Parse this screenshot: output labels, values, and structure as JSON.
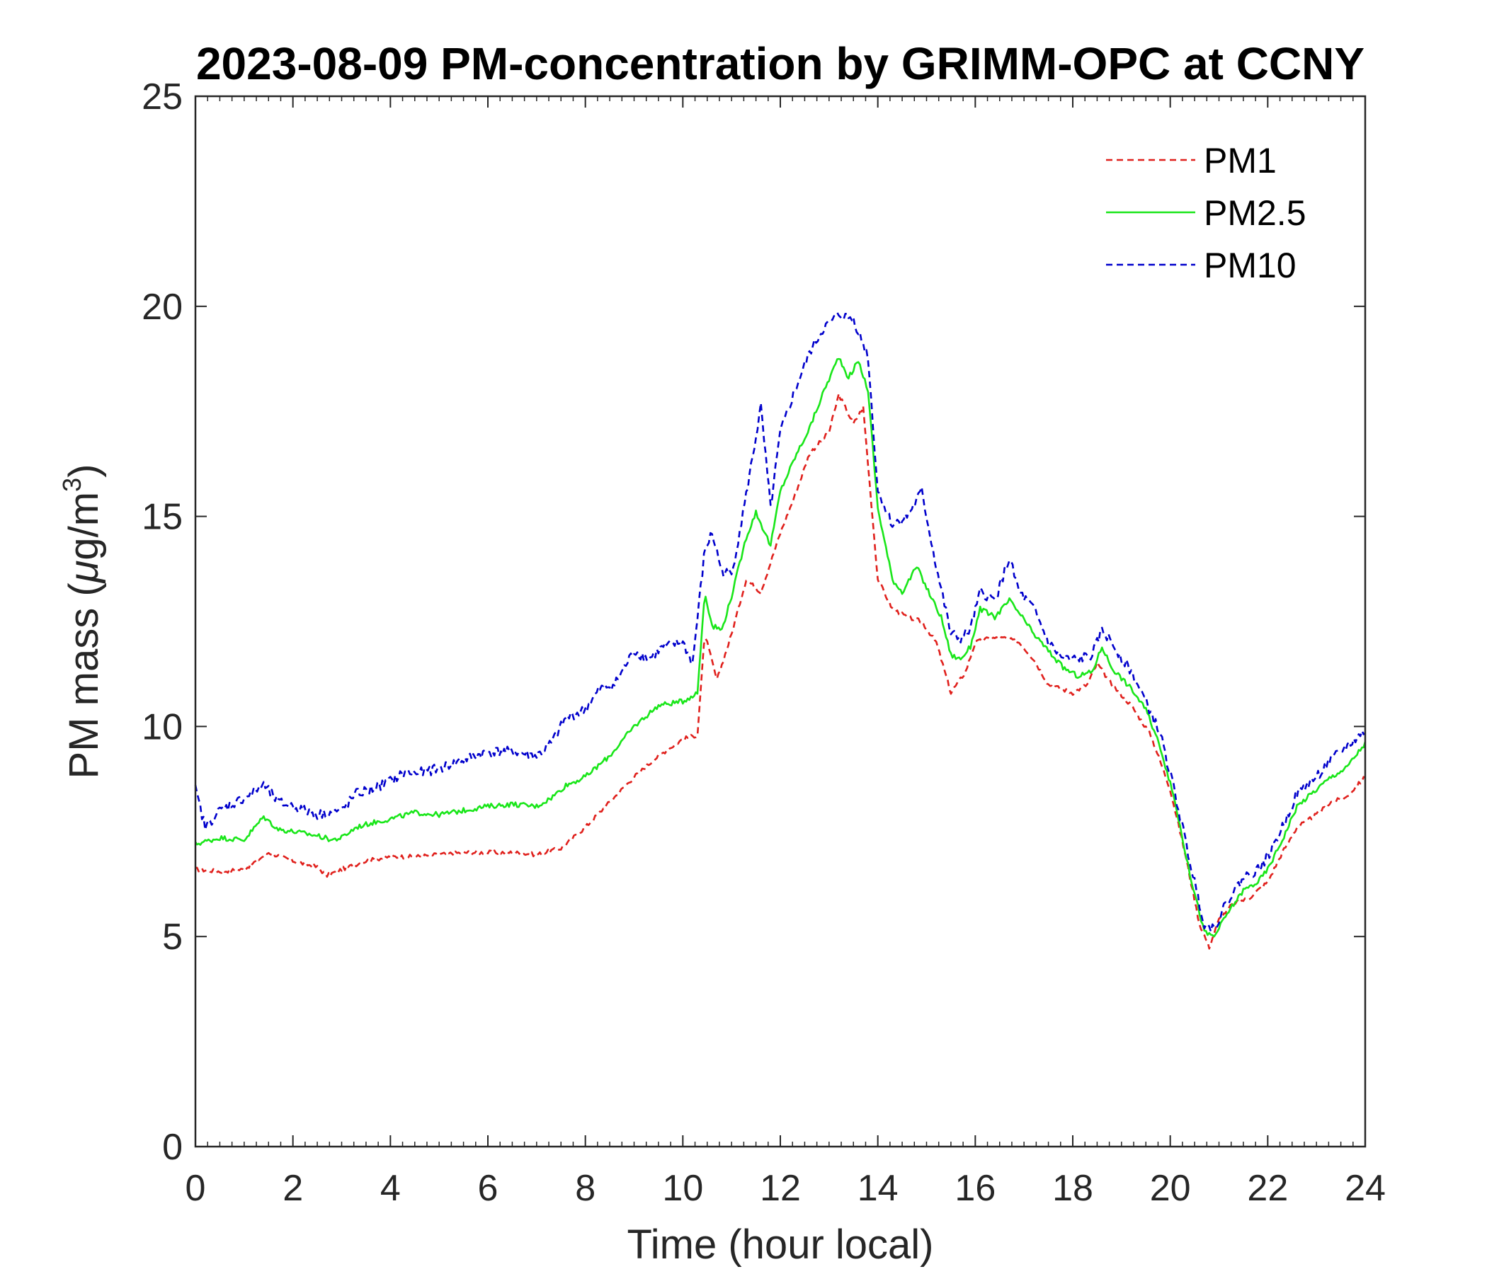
{
  "chart_data": {
    "type": "line",
    "title": "2023-08-09 PM-concentration by GRIMM-OPC at CCNY",
    "xlabel": "Time (hour local)",
    "ylabel": "PM mass (μg/m3)",
    "ylabel_parts": {
      "main": "PM mass (",
      "mu": "μ",
      "unit": "g/m",
      "sup": "3",
      "close": ")"
    },
    "xlim": [
      0,
      24
    ],
    "ylim": [
      0,
      25
    ],
    "xticks": [
      "0",
      "2",
      "4",
      "6",
      "8",
      "10",
      "12",
      "14",
      "16",
      "18",
      "20",
      "22",
      "24"
    ],
    "yticks": [
      "0",
      "5",
      "10",
      "15",
      "20",
      "25"
    ],
    "legend_position": "top-right",
    "series": [
      {
        "name": "PM1",
        "color": "#e0201c",
        "style": "dashed",
        "x": [
          0,
          0.5,
          1,
          1.5,
          2,
          2.5,
          2.7,
          3,
          3.5,
          4,
          4.5,
          5,
          5.5,
          6,
          6.5,
          7,
          7.5,
          8,
          8.5,
          9,
          9.5,
          10,
          10.3,
          10.45,
          10.7,
          11,
          11.3,
          11.6,
          12,
          12.3,
          12.6,
          13,
          13.2,
          13.5,
          13.7,
          14,
          14.3,
          14.6,
          14.9,
          15.2,
          15.5,
          15.8,
          16,
          16.3,
          16.6,
          16.9,
          17.2,
          17.5,
          18,
          18.3,
          18.5,
          18.8,
          19.2,
          19.6,
          20,
          20.3,
          20.6,
          20.8,
          21,
          21.3,
          21.6,
          22,
          22.3,
          22.6,
          23,
          23.3,
          23.6,
          24
        ],
        "values": [
          6.6,
          6.55,
          6.6,
          7.0,
          6.8,
          6.65,
          6.45,
          6.6,
          6.8,
          6.9,
          6.9,
          6.95,
          7.0,
          7.0,
          7.0,
          6.95,
          7.1,
          7.6,
          8.2,
          8.8,
          9.3,
          9.7,
          9.8,
          12.2,
          11.1,
          12.2,
          13.5,
          13.2,
          14.6,
          15.5,
          16.5,
          17.0,
          17.9,
          17.2,
          17.6,
          13.5,
          12.8,
          12.6,
          12.5,
          12.0,
          10.8,
          11.3,
          12.0,
          12.1,
          12.1,
          12.0,
          11.6,
          11.0,
          10.8,
          11.0,
          11.5,
          11.0,
          10.5,
          9.8,
          8.5,
          7.0,
          5.3,
          4.75,
          5.4,
          5.8,
          5.9,
          6.3,
          7.0,
          7.6,
          7.9,
          8.2,
          8.3,
          8.8
        ]
      },
      {
        "name": "PM2.5",
        "color": "#19e619",
        "style": "solid",
        "x": [
          0,
          0.5,
          1,
          1.4,
          1.7,
          2,
          2.5,
          2.8,
          3,
          3.3,
          3.6,
          4,
          4.5,
          5,
          5.5,
          6,
          6.5,
          7,
          7.3,
          7.6,
          8,
          8.5,
          9,
          9.5,
          10,
          10.3,
          10.45,
          10.6,
          10.8,
          11,
          11.3,
          11.5,
          11.8,
          12,
          12.3,
          12.6,
          12.9,
          13.2,
          13.4,
          13.6,
          13.8,
          14,
          14.3,
          14.5,
          14.8,
          15,
          15.3,
          15.5,
          15.7,
          15.9,
          16.1,
          16.4,
          16.7,
          16.9,
          17.2,
          17.5,
          17.8,
          18.1,
          18.4,
          18.6,
          18.8,
          19.2,
          19.5,
          19.8,
          20.1,
          20.4,
          20.7,
          20.9,
          21.2,
          21.5,
          21.8,
          22,
          22.3,
          22.6,
          23,
          23.3,
          23.6,
          24
        ],
        "values": [
          7.2,
          7.35,
          7.3,
          7.85,
          7.55,
          7.5,
          7.4,
          7.3,
          7.35,
          7.6,
          7.7,
          7.8,
          7.95,
          7.9,
          8.0,
          8.1,
          8.15,
          8.1,
          8.3,
          8.6,
          8.8,
          9.3,
          10.0,
          10.5,
          10.6,
          10.8,
          13.2,
          12.4,
          12.3,
          13.1,
          14.5,
          15.1,
          14.3,
          15.6,
          16.4,
          17.1,
          18.0,
          18.8,
          18.3,
          18.7,
          18.0,
          15.2,
          13.5,
          13.2,
          13.8,
          13.3,
          12.6,
          11.7,
          11.6,
          11.9,
          12.8,
          12.6,
          13.0,
          12.7,
          12.2,
          11.8,
          11.4,
          11.2,
          11.3,
          11.9,
          11.4,
          10.9,
          10.4,
          9.5,
          8.2,
          6.5,
          5.1,
          5.0,
          5.6,
          6.1,
          6.3,
          6.6,
          7.3,
          8.1,
          8.5,
          8.8,
          9.0,
          9.6
        ]
      },
      {
        "name": "PM10",
        "color": "#0000cc",
        "style": "dashed",
        "x": [
          0,
          0.2,
          0.5,
          1,
          1.4,
          1.7,
          2,
          2.5,
          3,
          3.3,
          3.6,
          4,
          4.3,
          4.6,
          5,
          5.5,
          6,
          6.5,
          7,
          7.3,
          7.6,
          8,
          8.3,
          8.6,
          9,
          9.3,
          9.6,
          10,
          10.2,
          10.45,
          10.6,
          10.8,
          11,
          11.3,
          11.6,
          11.8,
          12,
          12.3,
          12.6,
          12.9,
          13.2,
          13.5,
          13.8,
          14,
          14.3,
          14.6,
          14.9,
          15.2,
          15.5,
          15.7,
          15.9,
          16.1,
          16.4,
          16.7,
          16.9,
          17.2,
          17.5,
          17.8,
          18.1,
          18.4,
          18.6,
          18.8,
          19.2,
          19.5,
          19.8,
          20.1,
          20.4,
          20.7,
          20.9,
          21.2,
          21.5,
          21.8,
          22,
          22.3,
          22.6,
          23,
          23.3,
          23.6,
          24
        ],
        "values": [
          8.5,
          7.6,
          8.0,
          8.3,
          8.6,
          8.2,
          8.1,
          7.9,
          8.0,
          8.4,
          8.5,
          8.7,
          8.9,
          8.9,
          9.0,
          9.2,
          9.4,
          9.4,
          9.3,
          9.6,
          10.2,
          10.4,
          10.9,
          11.0,
          11.8,
          11.6,
          11.9,
          12.0,
          11.5,
          14.2,
          14.6,
          13.7,
          13.6,
          15.5,
          17.6,
          15.2,
          17.0,
          18.0,
          18.9,
          19.5,
          19.8,
          19.7,
          18.8,
          15.6,
          14.8,
          15.0,
          15.6,
          13.8,
          12.2,
          12.1,
          12.3,
          13.2,
          13.0,
          14.0,
          13.2,
          12.8,
          12.0,
          11.6,
          11.6,
          11.7,
          12.3,
          12.0,
          11.3,
          10.6,
          9.8,
          8.4,
          6.8,
          5.3,
          5.2,
          5.9,
          6.4,
          6.6,
          6.9,
          7.6,
          8.4,
          8.8,
          9.2,
          9.5,
          9.9
        ]
      }
    ]
  }
}
